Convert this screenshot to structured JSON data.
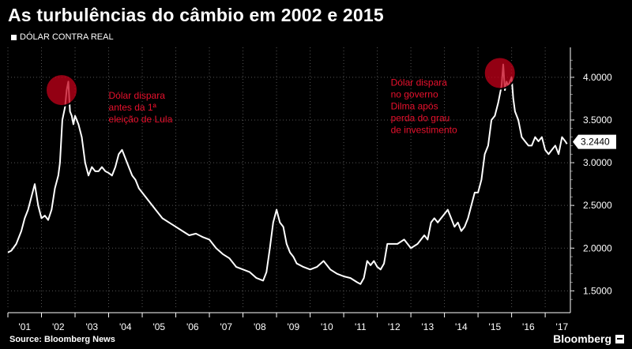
{
  "title": "As turbulências do câmbio em 2002 e 2015",
  "legend_label": "DÓLAR CONTRA REAL",
  "source": "Source: Bloomberg News",
  "logo": "Bloomberg",
  "colors": {
    "line": "#ffffff",
    "annotation": "#e8112d",
    "marker": "#c4001a",
    "grid": "#555555"
  },
  "chart_data": {
    "type": "line",
    "ylim": [
      1.3,
      4.35
    ],
    "yticks": [
      1.5,
      2.0,
      2.5,
      3.0,
      3.5,
      4.0
    ],
    "ytick_labels": [
      "1.5000",
      "2.0000",
      "2.5000",
      "3.0000",
      "3.5000",
      "4.0000"
    ],
    "xlim": [
      2001.0,
      2017.75
    ],
    "xtick_labels": [
      "'01",
      "'02",
      "'03",
      "'04",
      "'05",
      "'06",
      "'07",
      "'08",
      "'09",
      "'10",
      "'11",
      "'12",
      "'13",
      "'14",
      "'15",
      "'16",
      "'17"
    ],
    "last_value": 3.244,
    "last_value_label": "3.2440",
    "series": [
      {
        "x": [
          2001.0,
          2001.1,
          2001.25,
          2001.4,
          2001.5,
          2001.6,
          2001.7,
          2001.8,
          2001.9,
          2002.0,
          2002.1,
          2002.2,
          2002.3,
          2002.4,
          2002.5,
          2002.55,
          2002.62,
          2002.7,
          2002.75,
          2002.8,
          2002.85,
          2002.9,
          2002.95,
          2003.0,
          2003.1,
          2003.2,
          2003.3,
          2003.4,
          2003.5,
          2003.6,
          2003.7,
          2003.8,
          2003.9,
          2004.0,
          2004.1,
          2004.2,
          2004.3,
          2004.4,
          2004.5,
          2004.6,
          2004.7,
          2004.8,
          2004.9,
          2005.0,
          2005.2,
          2005.4,
          2005.6,
          2005.8,
          2006.0,
          2006.2,
          2006.4,
          2006.6,
          2006.8,
          2007.0,
          2007.2,
          2007.4,
          2007.6,
          2007.8,
          2008.0,
          2008.2,
          2008.4,
          2008.6,
          2008.7,
          2008.8,
          2008.9,
          2009.0,
          2009.1,
          2009.2,
          2009.3,
          2009.4,
          2009.5,
          2009.6,
          2009.8,
          2010.0,
          2010.2,
          2010.4,
          2010.6,
          2010.8,
          2011.0,
          2011.2,
          2011.4,
          2011.5,
          2011.6,
          2011.7,
          2011.8,
          2011.9,
          2012.0,
          2012.1,
          2012.2,
          2012.3,
          2012.4,
          2012.6,
          2012.8,
          2013.0,
          2013.2,
          2013.4,
          2013.5,
          2013.6,
          2013.7,
          2013.8,
          2013.9,
          2014.0,
          2014.1,
          2014.2,
          2014.3,
          2014.4,
          2014.5,
          2014.6,
          2014.7,
          2014.8,
          2014.9,
          2015.0,
          2015.1,
          2015.2,
          2015.3,
          2015.4,
          2015.5,
          2015.6,
          2015.7,
          2015.75,
          2015.8,
          2015.85,
          2015.9,
          2016.0,
          2016.05,
          2016.1,
          2016.2,
          2016.3,
          2016.4,
          2016.5,
          2016.6,
          2016.7,
          2016.8,
          2016.9,
          2017.0,
          2017.1,
          2017.2,
          2017.3,
          2017.4,
          2017.5,
          2017.6,
          2017.65
        ],
        "y": [
          1.95,
          1.97,
          2.05,
          2.2,
          2.35,
          2.45,
          2.6,
          2.75,
          2.5,
          2.35,
          2.38,
          2.33,
          2.45,
          2.7,
          2.85,
          3.0,
          3.5,
          3.65,
          3.85,
          3.95,
          3.6,
          3.55,
          3.45,
          3.55,
          3.45,
          3.3,
          3.0,
          2.85,
          2.95,
          2.9,
          2.9,
          2.95,
          2.9,
          2.88,
          2.85,
          2.95,
          3.1,
          3.15,
          3.05,
          2.95,
          2.85,
          2.8,
          2.7,
          2.65,
          2.55,
          2.45,
          2.35,
          2.3,
          2.25,
          2.2,
          2.15,
          2.17,
          2.13,
          2.1,
          2.0,
          1.93,
          1.88,
          1.78,
          1.75,
          1.72,
          1.65,
          1.62,
          1.72,
          2.0,
          2.3,
          2.45,
          2.3,
          2.25,
          2.05,
          1.95,
          1.9,
          1.82,
          1.78,
          1.75,
          1.78,
          1.85,
          1.75,
          1.7,
          1.67,
          1.65,
          1.6,
          1.58,
          1.65,
          1.85,
          1.8,
          1.85,
          1.78,
          1.75,
          1.82,
          2.05,
          2.05,
          2.05,
          2.1,
          2.0,
          2.05,
          2.15,
          2.1,
          2.3,
          2.35,
          2.3,
          2.35,
          2.4,
          2.45,
          2.35,
          2.25,
          2.3,
          2.2,
          2.25,
          2.35,
          2.5,
          2.65,
          2.65,
          2.8,
          3.1,
          3.2,
          3.5,
          3.55,
          3.7,
          3.9,
          4.15,
          3.85,
          3.95,
          3.9,
          4.0,
          3.75,
          3.6,
          3.5,
          3.3,
          3.25,
          3.2,
          3.2,
          3.3,
          3.25,
          3.3,
          3.15,
          3.1,
          3.15,
          3.2,
          3.1,
          3.3,
          3.25,
          3.22
        ]
      }
    ],
    "annotations": [
      {
        "lines": [
          "Dólar dispara",
          "antes da 1ª",
          "eleição de Lula"
        ],
        "x": 2004.0,
        "y": 3.75
      },
      {
        "lines": [
          "Dólar dispara",
          "no governo",
          "Dilma após",
          "perda do grau",
          "de investimento"
        ],
        "x": 2012.4,
        "y": 3.9
      }
    ],
    "markers": [
      {
        "x": 2002.6,
        "y": 3.85
      },
      {
        "x": 2015.65,
        "y": 4.05
      }
    ]
  }
}
